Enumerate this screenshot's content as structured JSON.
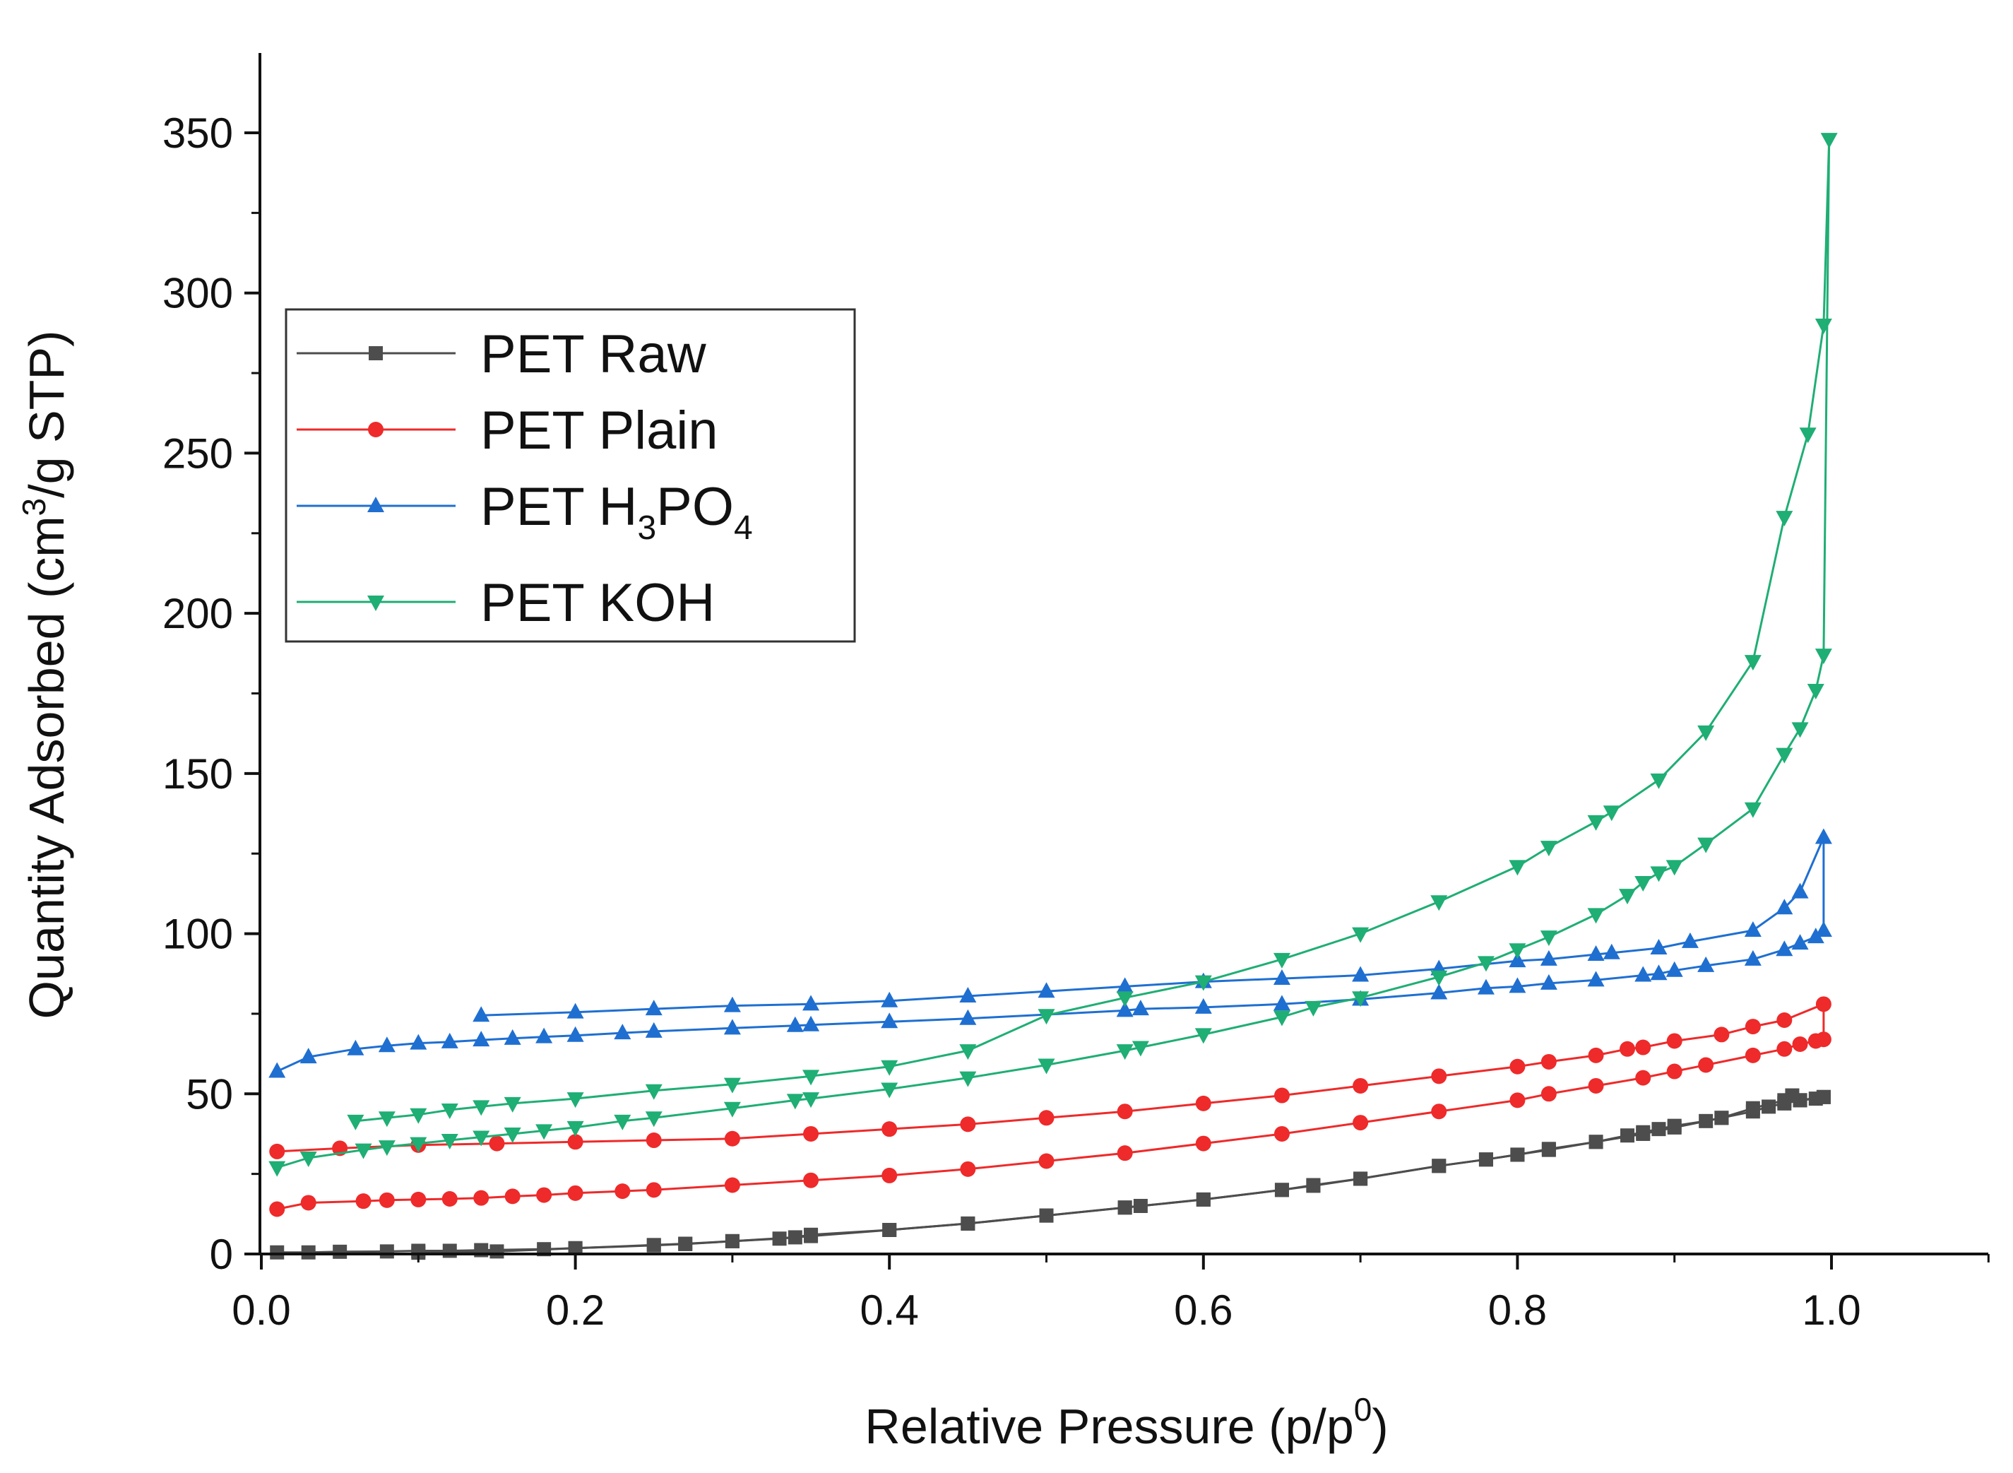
{
  "chart_data": {
    "type": "line",
    "title": "",
    "xlabel": "Relative Pressure (p/p",
    "xlabel_sup": "0",
    "xlabel_tail": ")",
    "ylabel": "Quantity Adsorbed (cm",
    "ylabel_sup": "3",
    "ylabel_tail": "/g STP)",
    "xlim": [
      0.0,
      1.1
    ],
    "ylim": [
      0,
      375
    ],
    "xticks": [
      0.0,
      0.2,
      0.4,
      0.6,
      0.8,
      1.0
    ],
    "xtick_labels": [
      "0.0",
      "0.2",
      "0.4",
      "0.6",
      "0.8",
      "1.0"
    ],
    "yticks": [
      0,
      50,
      100,
      150,
      200,
      250,
      300,
      350
    ],
    "ytick_labels": [
      "0",
      "50",
      "100",
      "150",
      "200",
      "250",
      "300",
      "350"
    ],
    "grid": false,
    "legend_position": "upper-left",
    "series": [
      {
        "name": "PET Raw",
        "name_parts": [
          "PET Raw"
        ],
        "color": "#4d4d4d",
        "marker": "square",
        "adsorption": {
          "x": [
            0.01,
            0.03,
            0.05,
            0.08,
            0.1,
            0.12,
            0.14,
            0.18,
            0.2,
            0.25,
            0.27,
            0.3,
            0.33,
            0.35,
            0.4,
            0.45,
            0.5,
            0.55,
            0.6,
            0.65,
            0.67,
            0.7,
            0.75,
            0.78,
            0.8,
            0.82,
            0.85,
            0.87,
            0.88,
            0.89,
            0.9,
            0.92,
            0.93,
            0.95,
            0.96,
            0.97,
            0.98,
            0.99,
            0.995
          ],
          "y": [
            0.5,
            0.5,
            0.7,
            0.8,
            1.0,
            1.0,
            1.2,
            1.5,
            1.8,
            2.7,
            3.1,
            4.0,
            4.8,
            5.6,
            7.5,
            9.5,
            12.0,
            14.5,
            17.0,
            20.0,
            21.3,
            23.5,
            27.5,
            29.5,
            31.0,
            32.5,
            35.0,
            37.0,
            38.0,
            39.0,
            40.0,
            41.5,
            42.5,
            44.5,
            46.0,
            47.0,
            48.0,
            48.5,
            49.0
          ]
        },
        "desorption": {
          "x": [
            0.995,
            0.98,
            0.975,
            0.97,
            0.95,
            0.93,
            0.9,
            0.88,
            0.85,
            0.82,
            0.8,
            0.78,
            0.75,
            0.7,
            0.67,
            0.65,
            0.6,
            0.56,
            0.55,
            0.5,
            0.45,
            0.4,
            0.35,
            0.34,
            0.3,
            0.27,
            0.25,
            0.2,
            0.15,
            0.1
          ],
          "y": [
            49.0,
            48.0,
            49.5,
            48.0,
            45.5,
            42.5,
            39.5,
            37.5,
            35.0,
            32.8,
            31.0,
            29.5,
            27.5,
            23.5,
            21.5,
            20.0,
            17.0,
            15.0,
            14.5,
            12.0,
            9.5,
            7.5,
            6.0,
            5.2,
            4.0,
            3.2,
            2.8,
            1.8,
            0.8,
            0.4
          ]
        }
      },
      {
        "name": "PET Plain",
        "name_parts": [
          "PET Plain"
        ],
        "color": "#ee2a2a",
        "marker": "circle",
        "adsorption": {
          "x": [
            0.01,
            0.03,
            0.065,
            0.08,
            0.1,
            0.12,
            0.14,
            0.16,
            0.18,
            0.2,
            0.23,
            0.25,
            0.3,
            0.35,
            0.4,
            0.45,
            0.5,
            0.55,
            0.6,
            0.65,
            0.7,
            0.75,
            0.8,
            0.82,
            0.85,
            0.88,
            0.9,
            0.92,
            0.95,
            0.97,
            0.98,
            0.99,
            0.995
          ],
          "y": [
            14,
            16,
            16.5,
            16.8,
            17,
            17.2,
            17.5,
            18,
            18.4,
            19,
            19.6,
            20,
            21.5,
            23,
            24.5,
            26.5,
            29,
            31.5,
            34.5,
            37.5,
            41,
            44.5,
            48,
            50,
            52.5,
            55,
            57,
            59,
            62,
            64,
            65.5,
            66.5,
            67
          ]
        },
        "desorption": {
          "x": [
            0.995,
            0.97,
            0.95,
            0.93,
            0.9,
            0.88,
            0.87,
            0.85,
            0.82,
            0.8,
            0.75,
            0.7,
            0.65,
            0.6,
            0.55,
            0.5,
            0.45,
            0.4,
            0.35,
            0.3,
            0.25,
            0.2,
            0.15,
            0.1,
            0.05,
            0.01
          ],
          "y": [
            78,
            73,
            71,
            68.5,
            66.5,
            64.5,
            64,
            62,
            60,
            58.5,
            55.5,
            52.5,
            49.5,
            47,
            44.5,
            42.5,
            40.5,
            39,
            37.5,
            36,
            35.5,
            35,
            34.5,
            34,
            33,
            32
          ]
        }
      },
      {
        "name": "PET H3PO4",
        "name_parts": [
          "PET H",
          "3",
          "PO",
          "4"
        ],
        "color": "#1f6fd1",
        "marker": "triangle-up",
        "adsorption": {
          "x": [
            0.01,
            0.03,
            0.06,
            0.08,
            0.1,
            0.12,
            0.14,
            0.16,
            0.18,
            0.2,
            0.23,
            0.25,
            0.3,
            0.34,
            0.35,
            0.4,
            0.45,
            0.55,
            0.56,
            0.6,
            0.65,
            0.7,
            0.75,
            0.78,
            0.8,
            0.82,
            0.85,
            0.88,
            0.89,
            0.9,
            0.92,
            0.95,
            0.97,
            0.98,
            0.99,
            0.995
          ],
          "y": [
            57,
            61.5,
            64,
            65,
            65.8,
            66.2,
            66.8,
            67.3,
            67.8,
            68.2,
            69,
            69.5,
            70.5,
            71.3,
            71.5,
            72.5,
            73.5,
            76,
            76.5,
            77,
            78,
            79.5,
            81.5,
            83,
            83.5,
            84.5,
            85.5,
            87,
            87.5,
            88.5,
            90,
            92,
            95,
            97,
            99,
            101
          ]
        },
        "desorption": {
          "x": [
            0.995,
            0.98,
            0.97,
            0.95,
            0.91,
            0.89,
            0.86,
            0.85,
            0.82,
            0.8,
            0.75,
            0.7,
            0.65,
            0.6,
            0.55,
            0.5,
            0.45,
            0.4,
            0.35,
            0.3,
            0.25,
            0.2,
            0.14
          ],
          "y": [
            130,
            113,
            108,
            101,
            97.5,
            95.5,
            94,
            93.5,
            92,
            91.5,
            89,
            87,
            86,
            85,
            83.5,
            82,
            80.5,
            79,
            78,
            77.5,
            76.5,
            75.5,
            74.5
          ]
        }
      },
      {
        "name": "PET KOH",
        "name_parts": [
          "PET KOH"
        ],
        "color": "#1fae74",
        "marker": "triangle-down",
        "adsorption": {
          "x": [
            0.01,
            0.03,
            0.065,
            0.08,
            0.1,
            0.12,
            0.14,
            0.16,
            0.18,
            0.2,
            0.23,
            0.25,
            0.3,
            0.34,
            0.35,
            0.4,
            0.45,
            0.5,
            0.55,
            0.56,
            0.6,
            0.65,
            0.67,
            0.7,
            0.75,
            0.78,
            0.8,
            0.82,
            0.85,
            0.87,
            0.88,
            0.89,
            0.9,
            0.92,
            0.95,
            0.97,
            0.98,
            0.99,
            0.995
          ],
          "y": [
            27,
            30,
            32.5,
            33.5,
            34.5,
            35.5,
            36.5,
            37.5,
            38.5,
            39.5,
            41.5,
            42.5,
            45.5,
            48,
            48.5,
            51.5,
            55,
            59,
            63.5,
            64.5,
            68.5,
            74,
            77,
            80,
            86.5,
            91,
            95,
            99,
            106,
            112,
            116,
            119,
            121,
            128,
            139,
            156,
            164,
            176,
            187
          ]
        },
        "desorption": {
          "x": [
            0.9985,
            0.995,
            0.985,
            0.97,
            0.95,
            0.92,
            0.89,
            0.86,
            0.85,
            0.82,
            0.8,
            0.75,
            0.7,
            0.65,
            0.6,
            0.55,
            0.5,
            0.45,
            0.4,
            0.35,
            0.3,
            0.25,
            0.2,
            0.16,
            0.14,
            0.12,
            0.1,
            0.08,
            0.06
          ],
          "y": [
            348,
            290,
            256,
            230,
            185,
            163,
            148,
            138,
            135,
            127,
            121,
            110,
            100,
            92,
            85,
            80,
            74.5,
            63.5,
            58.5,
            55.5,
            53,
            51,
            48.5,
            47,
            46,
            45,
            43.5,
            42.5,
            41.5
          ]
        }
      }
    ]
  }
}
